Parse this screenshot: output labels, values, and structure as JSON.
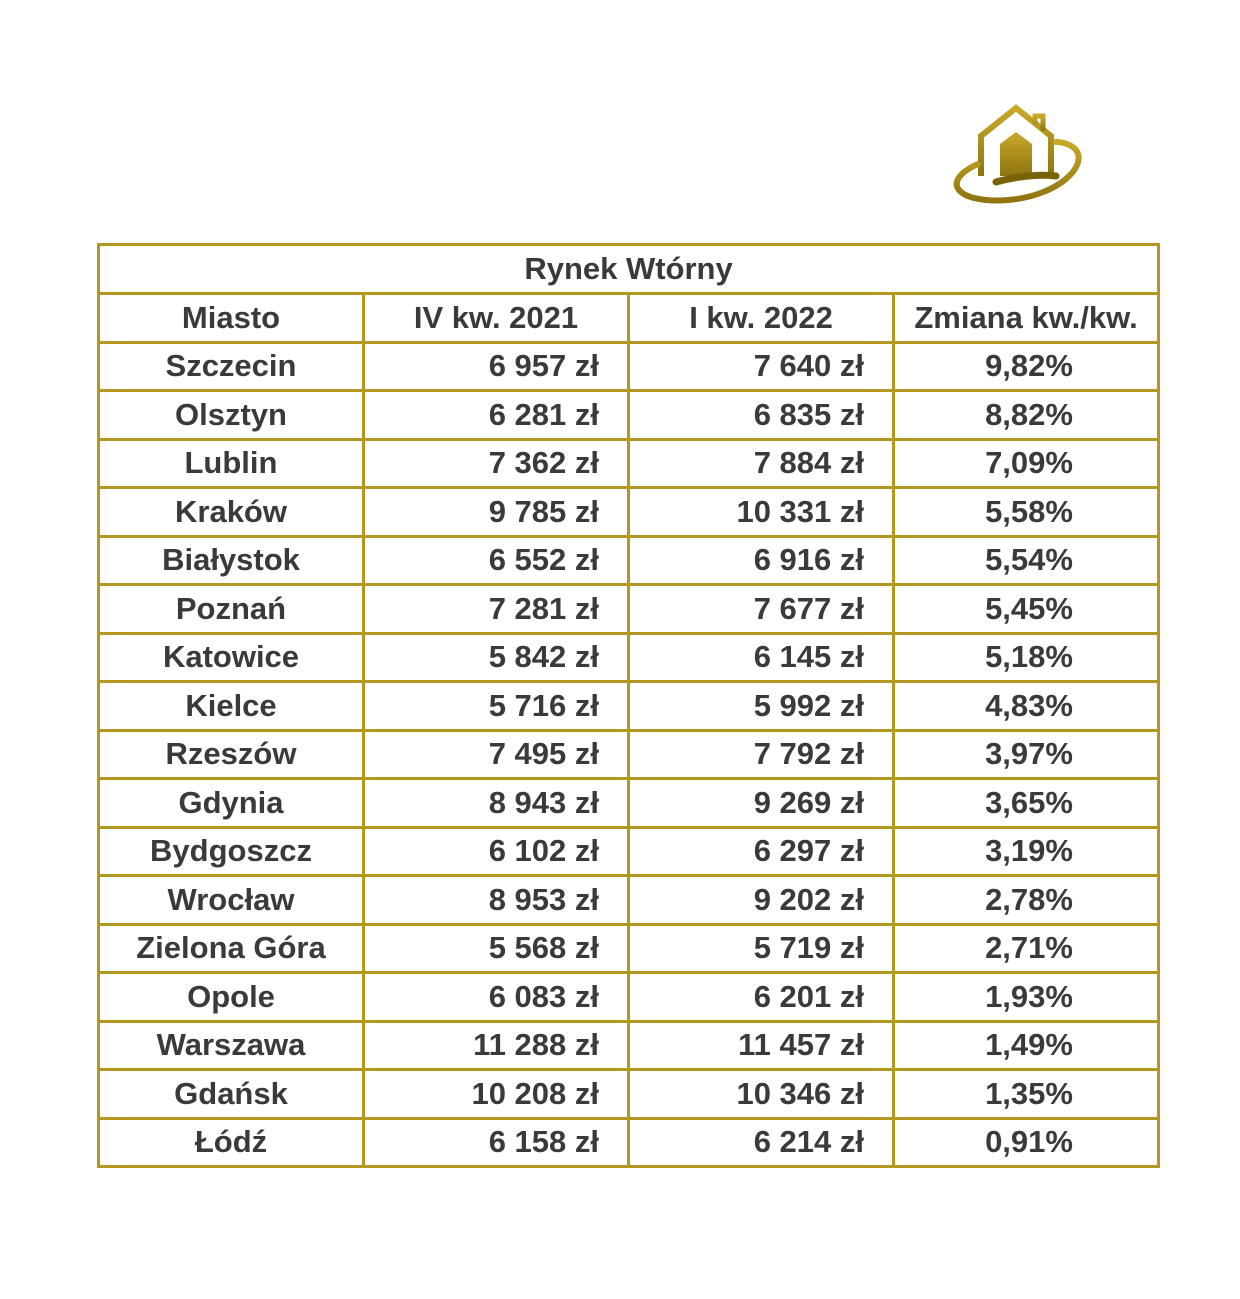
{
  "logo": {
    "icon": "house-orbit-logo",
    "color": "#a88a14"
  },
  "table": {
    "title": "Rynek Wtórny",
    "headers": [
      "Miasto",
      "IV kw. 2021",
      "I kw. 2022",
      "Zmiana kw./kw."
    ],
    "rows": [
      {
        "city": "Szczecin",
        "q4_2021": "6 957 zł",
        "q1_2022": "7 640 zł",
        "change": "9,82%"
      },
      {
        "city": "Olsztyn",
        "q4_2021": "6 281 zł",
        "q1_2022": "6 835 zł",
        "change": "8,82%"
      },
      {
        "city": "Lublin",
        "q4_2021": "7 362 zł",
        "q1_2022": "7 884 zł",
        "change": "7,09%"
      },
      {
        "city": "Kraków",
        "q4_2021": "9 785 zł",
        "q1_2022": "10 331 zł",
        "change": "5,58%"
      },
      {
        "city": "Białystok",
        "q4_2021": "6 552 zł",
        "q1_2022": "6 916 zł",
        "change": "5,54%"
      },
      {
        "city": "Poznań",
        "q4_2021": "7 281 zł",
        "q1_2022": "7 677 zł",
        "change": "5,45%"
      },
      {
        "city": "Katowice",
        "q4_2021": "5 842 zł",
        "q1_2022": "6 145 zł",
        "change": "5,18%"
      },
      {
        "city": "Kielce",
        "q4_2021": "5 716 zł",
        "q1_2022": "5 992 zł",
        "change": "4,83%"
      },
      {
        "city": "Rzeszów",
        "q4_2021": "7 495 zł",
        "q1_2022": "7 792 zł",
        "change": "3,97%"
      },
      {
        "city": "Gdynia",
        "q4_2021": "8 943 zł",
        "q1_2022": "9 269 zł",
        "change": "3,65%"
      },
      {
        "city": "Bydgoszcz",
        "q4_2021": "6 102 zł",
        "q1_2022": "6 297 zł",
        "change": "3,19%"
      },
      {
        "city": "Wrocław",
        "q4_2021": "8 953 zł",
        "q1_2022": "9 202 zł",
        "change": "2,78%"
      },
      {
        "city": "Zielona Góra",
        "q4_2021": "5 568 zł",
        "q1_2022": "5 719 zł",
        "change": "2,71%"
      },
      {
        "city": "Opole",
        "q4_2021": "6 083 zł",
        "q1_2022": "6 201 zł",
        "change": "1,93%"
      },
      {
        "city": "Warszawa",
        "q4_2021": "11 288 zł",
        "q1_2022": "11 457 zł",
        "change": "1,49%"
      },
      {
        "city": "Gdańsk",
        "q4_2021": "10 208 zł",
        "q1_2022": "10 346 zł",
        "change": "1,35%"
      },
      {
        "city": "Łódź",
        "q4_2021": "6 158 zł",
        "q1_2022": "6 214 zł",
        "change": "0,91%"
      }
    ],
    "border_color": "#b3971e",
    "text_color": "#3a3a3a"
  }
}
